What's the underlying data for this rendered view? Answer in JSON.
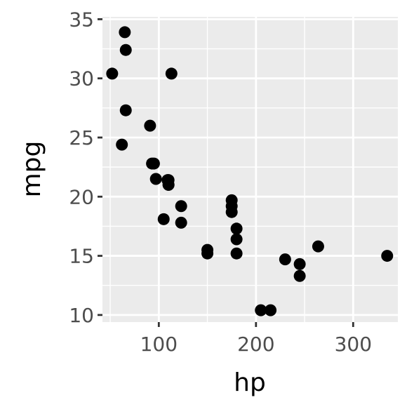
{
  "chart_data": {
    "type": "scatter",
    "title": "",
    "xlabel": "hp",
    "ylabel": "mpg",
    "xlim": [
      42,
      346
    ],
    "ylim": [
      9.4,
      35.2
    ],
    "x_ticks": [
      100,
      200,
      300
    ],
    "x_tick_labels": [
      "100",
      "200",
      "300"
    ],
    "y_ticks": [
      10,
      15,
      20,
      25,
      30,
      35
    ],
    "y_tick_labels": [
      "10",
      "15",
      "20",
      "25",
      "30",
      "35"
    ],
    "grid": true,
    "legend": "none",
    "colors": {
      "panel_background": "#ebebeb",
      "gridline": "#ffffff",
      "point": "#000000",
      "tick_label": "#4d4d4d",
      "axis_title": "#000000"
    },
    "points": [
      {
        "x": 110,
        "y": 21.0
      },
      {
        "x": 110,
        "y": 21.0
      },
      {
        "x": 93,
        "y": 22.8
      },
      {
        "x": 110,
        "y": 21.4
      },
      {
        "x": 175,
        "y": 18.7
      },
      {
        "x": 105,
        "y": 18.1
      },
      {
        "x": 245,
        "y": 14.3
      },
      {
        "x": 62,
        "y": 24.4
      },
      {
        "x": 95,
        "y": 22.8
      },
      {
        "x": 123,
        "y": 19.2
      },
      {
        "x": 123,
        "y": 17.8
      },
      {
        "x": 180,
        "y": 16.4
      },
      {
        "x": 180,
        "y": 17.3
      },
      {
        "x": 180,
        "y": 15.2
      },
      {
        "x": 205,
        "y": 10.4
      },
      {
        "x": 215,
        "y": 10.4
      },
      {
        "x": 230,
        "y": 14.7
      },
      {
        "x": 66,
        "y": 32.4
      },
      {
        "x": 52,
        "y": 30.4
      },
      {
        "x": 65,
        "y": 33.9
      },
      {
        "x": 97,
        "y": 21.5
      },
      {
        "x": 150,
        "y": 15.5
      },
      {
        "x": 150,
        "y": 15.2
      },
      {
        "x": 245,
        "y": 13.3
      },
      {
        "x": 175,
        "y": 19.2
      },
      {
        "x": 66,
        "y": 27.3
      },
      {
        "x": 91,
        "y": 26.0
      },
      {
        "x": 113,
        "y": 30.4
      },
      {
        "x": 264,
        "y": 15.8
      },
      {
        "x": 175,
        "y": 19.7
      },
      {
        "x": 335,
        "y": 15.0
      },
      {
        "x": 109,
        "y": 21.4
      }
    ]
  }
}
